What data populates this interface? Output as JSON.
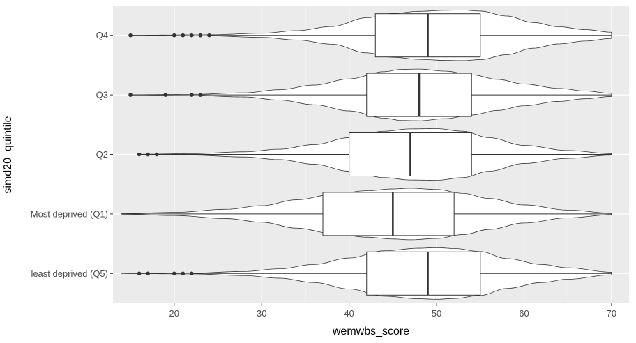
{
  "chart_data": {
    "type": "violin-boxplot",
    "orientation": "horizontal",
    "xlabel": "wemwbs_score",
    "ylabel": "simd20_quintile",
    "xlim": [
      13,
      72
    ],
    "x_ticks": [
      20,
      30,
      40,
      50,
      60,
      70
    ],
    "grid": true,
    "colors": {
      "panel": "#ebebeb",
      "grid": "#ffffff",
      "outline": "#333333",
      "outlier": "#333333",
      "box_fill": "#ffffff",
      "violin_fill": "#ffffff"
    },
    "categories": [
      "least deprived (Q5)",
      "Most deprived (Q1)",
      "Q2",
      "Q3",
      "Q4"
    ],
    "groups": [
      {
        "category": "least deprived (Q5)",
        "violin_range": [
          14,
          70
        ],
        "density": [
          [
            14,
            0.003
          ],
          [
            22,
            0.015
          ],
          [
            28,
            0.08
          ],
          [
            32,
            0.18
          ],
          [
            36,
            0.35
          ],
          [
            40,
            0.6
          ],
          [
            44,
            0.88
          ],
          [
            48,
            0.98
          ],
          [
            50,
            1.0
          ],
          [
            52,
            0.97
          ],
          [
            55,
            0.85
          ],
          [
            58,
            0.58
          ],
          [
            62,
            0.35
          ],
          [
            65,
            0.22
          ],
          [
            70,
            0.05
          ]
        ],
        "whisker_low": 22,
        "q1": 42,
        "median": 49,
        "q3": 55,
        "whisker_high": 70,
        "outliers": [
          16,
          17,
          20,
          21,
          22
        ]
      },
      {
        "category": "Most deprived (Q1)",
        "violin_range": [
          14,
          70
        ],
        "density": [
          [
            14,
            0.01
          ],
          [
            20,
            0.06
          ],
          [
            26,
            0.18
          ],
          [
            30,
            0.32
          ],
          [
            34,
            0.55
          ],
          [
            38,
            0.75
          ],
          [
            42,
            0.9
          ],
          [
            45,
            0.97
          ],
          [
            47,
            1.0
          ],
          [
            50,
            0.95
          ],
          [
            53,
            0.8
          ],
          [
            56,
            0.6
          ],
          [
            60,
            0.35
          ],
          [
            65,
            0.15
          ],
          [
            70,
            0.03
          ]
        ],
        "whisker_low": 14,
        "q1": 37,
        "median": 45,
        "q3": 52,
        "whisker_high": 70,
        "outliers": []
      },
      {
        "category": "Q2",
        "violin_range": [
          16,
          70
        ],
        "density": [
          [
            16,
            0.005
          ],
          [
            22,
            0.03
          ],
          [
            28,
            0.1
          ],
          [
            32,
            0.2
          ],
          [
            36,
            0.38
          ],
          [
            40,
            0.65
          ],
          [
            44,
            0.9
          ],
          [
            47,
            0.99
          ],
          [
            50,
            1.0
          ],
          [
            53,
            0.9
          ],
          [
            56,
            0.65
          ],
          [
            60,
            0.35
          ],
          [
            65,
            0.15
          ],
          [
            70,
            0.03
          ]
        ],
        "whisker_low": 18,
        "q1": 40,
        "median": 47,
        "q3": 54,
        "whisker_high": 70,
        "outliers": [
          16,
          17,
          18
        ]
      },
      {
        "category": "Q3",
        "violin_range": [
          15,
          70
        ],
        "density": [
          [
            15,
            0.005
          ],
          [
            22,
            0.02
          ],
          [
            28,
            0.08
          ],
          [
            32,
            0.2
          ],
          [
            36,
            0.38
          ],
          [
            40,
            0.62
          ],
          [
            44,
            0.9
          ],
          [
            46,
            0.99
          ],
          [
            48,
            1.0
          ],
          [
            51,
            0.92
          ],
          [
            54,
            0.78
          ],
          [
            57,
            0.6
          ],
          [
            60,
            0.42
          ],
          [
            64,
            0.25
          ],
          [
            67,
            0.15
          ],
          [
            70,
            0.06
          ]
        ],
        "whisker_low": 23,
        "q1": 42,
        "median": 48,
        "q3": 54,
        "whisker_high": 70,
        "outliers": [
          15,
          19,
          22,
          23
        ]
      },
      {
        "category": "Q4",
        "violin_range": [
          15,
          70
        ],
        "density": [
          [
            15,
            0.005
          ],
          [
            24,
            0.02
          ],
          [
            30,
            0.08
          ],
          [
            34,
            0.18
          ],
          [
            38,
            0.34
          ],
          [
            42,
            0.68
          ],
          [
            45,
            0.85
          ],
          [
            48,
            0.93
          ],
          [
            51,
            0.97
          ],
          [
            53,
            0.98
          ],
          [
            55,
            0.94
          ],
          [
            58,
            0.75
          ],
          [
            61,
            0.5
          ],
          [
            64,
            0.33
          ],
          [
            67,
            0.22
          ],
          [
            70,
            0.12
          ]
        ],
        "whisker_low": 24,
        "q1": 43,
        "median": 49,
        "q3": 55,
        "whisker_high": 70,
        "outliers": [
          15,
          20,
          21,
          22,
          23,
          24
        ]
      }
    ]
  }
}
